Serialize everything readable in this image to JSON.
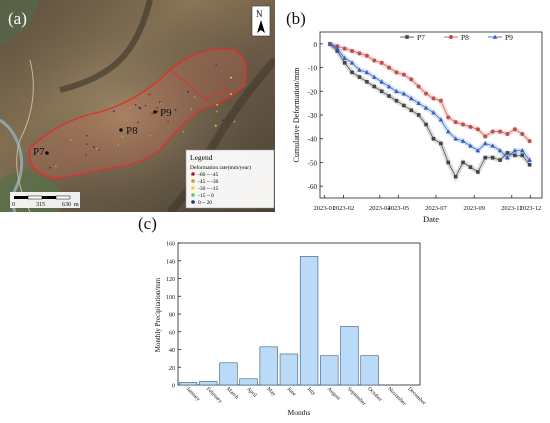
{
  "panels": {
    "a": {
      "label": "(a)",
      "north": "N",
      "points": [
        "P7",
        "P8",
        "P9"
      ],
      "legend_title": "Legend",
      "legend_subtitle": "Deformation rate(mm/year)",
      "legend_items": [
        {
          "label": "-60 ~ -45",
          "color": "#b2182b"
        },
        {
          "label": "-45 ~ -30",
          "color": "#e08a34"
        },
        {
          "label": "-30 ~ -15",
          "color": "#e8d84a"
        },
        {
          "label": "-15 ~ 0",
          "color": "#6fbf73"
        },
        {
          "label": "0 ~ 20",
          "color": "#1f2e8a"
        }
      ],
      "scale_labels": [
        "0",
        "315",
        "630"
      ],
      "scale_unit": "m"
    },
    "b": {
      "label": "(b)"
    },
    "c": {
      "label": "(c)"
    }
  },
  "chart_data": [
    {
      "type": "line",
      "xlabel": "Date",
      "ylabel": "Cumulative Deformation/mm",
      "x_ticks": [
        "2023-01",
        "2023-02",
        "2023-04",
        "2023-05",
        "2023-07",
        "2023-09",
        "2023-11",
        "2023-12"
      ],
      "ylim": [
        -65,
        5
      ],
      "y_ticks": [
        0,
        -10,
        -20,
        -30,
        -40,
        -50,
        -60
      ],
      "legend_position": "top-right",
      "series": [
        {
          "name": "P7",
          "color": "#444444",
          "marker": "square",
          "x": [
            "2023-01-10",
            "2023-01-22",
            "2023-02-03",
            "2023-02-15",
            "2023-02-27",
            "2023-03-11",
            "2023-03-23",
            "2023-04-04",
            "2023-04-16",
            "2023-04-28",
            "2023-05-10",
            "2023-05-22",
            "2023-06-03",
            "2023-06-15",
            "2023-06-27",
            "2023-07-09",
            "2023-07-21",
            "2023-08-02",
            "2023-08-14",
            "2023-08-26",
            "2023-09-07",
            "2023-09-19",
            "2023-10-01",
            "2023-10-13",
            "2023-10-25",
            "2023-11-06",
            "2023-11-18",
            "2023-11-30"
          ],
          "values": [
            0,
            -3,
            -8,
            -12,
            -14,
            -16,
            -18,
            -20,
            -22,
            -24,
            -26,
            -28,
            -30,
            -34,
            -40,
            -42,
            -50,
            -56,
            -50,
            -52,
            -54,
            -48,
            -48,
            -49,
            -46,
            -47,
            -47,
            -51
          ]
        },
        {
          "name": "P8",
          "color": "#c0504d",
          "marker": "circle",
          "x": [
            "2023-01-10",
            "2023-01-22",
            "2023-02-03",
            "2023-02-15",
            "2023-02-27",
            "2023-03-11",
            "2023-03-23",
            "2023-04-04",
            "2023-04-16",
            "2023-04-28",
            "2023-05-10",
            "2023-05-22",
            "2023-06-03",
            "2023-06-15",
            "2023-06-27",
            "2023-07-09",
            "2023-07-21",
            "2023-08-02",
            "2023-08-14",
            "2023-08-26",
            "2023-09-07",
            "2023-09-19",
            "2023-10-01",
            "2023-10-13",
            "2023-10-25",
            "2023-11-06",
            "2023-11-18",
            "2023-11-30"
          ],
          "values": [
            0,
            -1,
            -2,
            -3,
            -4,
            -5,
            -7,
            -8,
            -10,
            -12,
            -13,
            -15,
            -18,
            -21,
            -23,
            -24,
            -31,
            -33,
            -34,
            -35,
            -36,
            -39,
            -37,
            -37,
            -38,
            -36,
            -38,
            -41
          ]
        },
        {
          "name": "P9",
          "color": "#2f5ec4",
          "marker": "triangle",
          "x": [
            "2023-01-10",
            "2023-01-22",
            "2023-02-03",
            "2023-02-15",
            "2023-02-27",
            "2023-03-11",
            "2023-03-23",
            "2023-04-04",
            "2023-04-16",
            "2023-04-28",
            "2023-05-10",
            "2023-05-22",
            "2023-06-03",
            "2023-06-15",
            "2023-06-27",
            "2023-07-09",
            "2023-07-21",
            "2023-08-02",
            "2023-08-14",
            "2023-08-26",
            "2023-09-07",
            "2023-09-19",
            "2023-10-01",
            "2023-10-13",
            "2023-10-25",
            "2023-11-06",
            "2023-11-18",
            "2023-11-30"
          ],
          "values": [
            0,
            -2,
            -6,
            -8,
            -11,
            -12,
            -14,
            -16,
            -18,
            -20,
            -21,
            -23,
            -25,
            -27,
            -29,
            -32,
            -37,
            -40,
            -41,
            -43,
            -45,
            -42,
            -43,
            -45,
            -48,
            -45,
            -45,
            -49
          ]
        }
      ]
    },
    {
      "type": "bar",
      "xlabel": "Months",
      "ylabel": "Monthly Precipitation/mm",
      "categories": [
        "January",
        "February",
        "March",
        "April",
        "May",
        "June",
        "July",
        "August",
        "September",
        "October",
        "November",
        "December"
      ],
      "values": [
        3,
        4,
        25,
        7,
        43,
        35,
        145,
        33,
        66,
        33,
        0,
        0
      ],
      "ylim": [
        0,
        160
      ],
      "y_ticks": [
        0,
        20,
        40,
        60,
        80,
        100,
        120,
        140,
        160
      ],
      "bar_color": "#b9dbf7",
      "bar_edge": "#3c5b7a"
    }
  ]
}
